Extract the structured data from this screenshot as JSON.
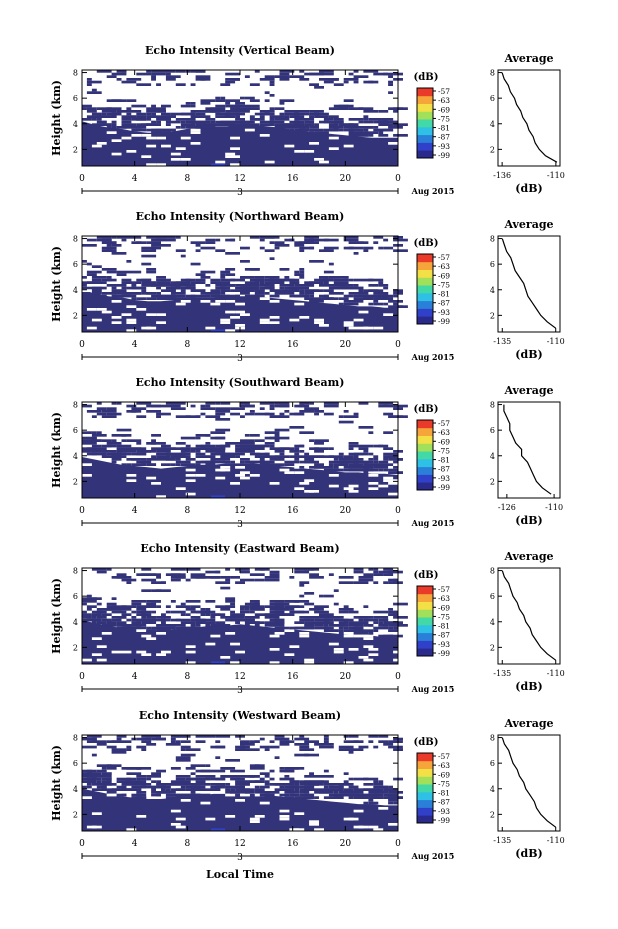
{
  "figure": {
    "xlabel": "Local Time",
    "cbar_title": "(dB)",
    "cbar_ticks": [
      "-57",
      "-63",
      "-69",
      "-75",
      "-81",
      "-87",
      "-93",
      "-99"
    ],
    "cbar_colors": [
      "#2a2a8c",
      "#3040c8",
      "#2a7fd8",
      "#2fc0e6",
      "#43d9a6",
      "#a2e05a",
      "#f2e046",
      "#f5a53a",
      "#ea3a2a"
    ],
    "fill_color": "#33337a",
    "date_label": "Aug 2015",
    "day_label": "3",
    "x_ticks": [
      "0",
      "4",
      "8",
      "12",
      "16",
      "20",
      "0"
    ],
    "ylabel": "Height (km)",
    "y_ticks": [
      "2",
      "4",
      "6",
      "8"
    ],
    "avg_title": "Average",
    "avg_xlabel": "(dB)"
  },
  "chart_data": [
    {
      "type": "heatmap",
      "title": "Echo Intensity (Vertical Beam)",
      "xlabel": "Local Time",
      "ylabel": "Height (km)",
      "xlim": [
        0,
        24
      ],
      "ylim": [
        0.7,
        8.2
      ],
      "colorbar": {
        "label": "(dB)",
        "range": [
          -99,
          -57
        ]
      },
      "echo_top_km": [
        5.3,
        5.0,
        4.8,
        4.7,
        4.5,
        4.4,
        4.4,
        4.5,
        4.7,
        4.8,
        4.9,
        4.9,
        5.0,
        5.0,
        4.9,
        4.8,
        4.6,
        4.5,
        4.4,
        4.3,
        4.2,
        4.1,
        4.0,
        4.0,
        4.0
      ],
      "profile": {
        "title": "Average",
        "xlabel": "(dB)",
        "x_ticks": [
          -136,
          -110
        ],
        "xlim": [
          -138,
          -108
        ],
        "ylim": [
          0.7,
          8.2
        ],
        "height_km": [
          1.0,
          1.5,
          2.0,
          2.5,
          3.0,
          3.5,
          4.0,
          4.5,
          5.0,
          5.5,
          6.0,
          6.5,
          7.0,
          7.5,
          8.0
        ],
        "values_db": [
          -109.5,
          -115,
          -118,
          -120,
          -121,
          -123,
          -124,
          -126,
          -127,
          -129,
          -130,
          -132,
          -133,
          -135,
          -136
        ]
      }
    },
    {
      "type": "heatmap",
      "title": "Echo Intensity (Northward Beam)",
      "xlabel": "Local Time",
      "ylabel": "Height (km)",
      "xlim": [
        0,
        24
      ],
      "ylim": [
        0.7,
        8.2
      ],
      "colorbar": {
        "label": "(dB)",
        "range": [
          -99,
          -57
        ]
      },
      "echo_top_km": [
        5.1,
        4.8,
        4.6,
        4.5,
        4.3,
        4.2,
        4.2,
        4.3,
        4.4,
        4.5,
        4.5,
        4.6,
        4.6,
        4.6,
        4.5,
        4.4,
        4.3,
        4.2,
        4.1,
        4.0,
        3.9,
        3.8,
        3.8,
        3.7,
        3.7
      ],
      "profile": {
        "title": "Average",
        "xlabel": "(dB)",
        "x_ticks": [
          -135,
          -110
        ],
        "xlim": [
          -137,
          -108
        ],
        "ylim": [
          0.7,
          8.2
        ],
        "height_km": [
          1.0,
          1.5,
          2.0,
          2.5,
          3.0,
          3.5,
          4.0,
          4.5,
          5.0,
          5.5,
          6.0,
          6.5,
          7.0,
          7.5,
          8.0
        ],
        "values_db": [
          -110,
          -114,
          -117,
          -119,
          -121,
          -123,
          -124,
          -125,
          -127,
          -129,
          -130,
          -131,
          -133,
          -134,
          -135
        ]
      }
    },
    {
      "type": "heatmap",
      "title": "Echo Intensity (Southward Beam)",
      "xlabel": "Local Time",
      "ylabel": "Height (km)",
      "xlim": [
        0,
        24
      ],
      "ylim": [
        0.7,
        8.2
      ],
      "colorbar": {
        "label": "(dB)",
        "range": [
          -99,
          -57
        ]
      },
      "echo_top_km": [
        5.0,
        4.8,
        4.6,
        4.4,
        4.3,
        4.2,
        4.1,
        4.2,
        4.3,
        4.4,
        4.4,
        4.5,
        4.5,
        4.5,
        4.4,
        4.3,
        4.2,
        4.1,
        4.0,
        3.9,
        3.8,
        3.8,
        3.7,
        3.7,
        3.6
      ],
      "profile": {
        "title": "Average",
        "xlabel": "(dB)",
        "x_ticks": [
          -126,
          -110
        ],
        "xlim": [
          -129,
          -108
        ],
        "ylim": [
          0.7,
          8.2
        ],
        "height_km": [
          1.0,
          1.5,
          2.0,
          2.5,
          3.0,
          3.5,
          4.0,
          4.5,
          5.0,
          5.5,
          6.0,
          6.5,
          7.0,
          7.5,
          8.0
        ],
        "values_db": [
          -111,
          -114,
          -116,
          -117,
          -118,
          -119,
          -121,
          -121,
          -123,
          -124,
          -125,
          -125,
          -126,
          -127,
          -127
        ]
      }
    },
    {
      "type": "heatmap",
      "title": "Echo Intensity (Eastward Beam)",
      "xlabel": "Local Time",
      "ylabel": "Height (km)",
      "xlim": [
        0,
        24
      ],
      "ylim": [
        0.7,
        8.2
      ],
      "colorbar": {
        "label": "(dB)",
        "range": [
          -99,
          -57
        ]
      },
      "echo_top_km": [
        5.2,
        5.0,
        4.8,
        4.6,
        4.5,
        4.4,
        4.4,
        4.5,
        4.6,
        4.7,
        4.8,
        4.8,
        4.9,
        4.8,
        4.7,
        4.6,
        4.5,
        4.4,
        4.3,
        4.2,
        4.1,
        4.0,
        4.0,
        3.9,
        3.9
      ],
      "profile": {
        "title": "Average",
        "xlabel": "(dB)",
        "x_ticks": [
          -135,
          -110
        ],
        "xlim": [
          -137,
          -108
        ],
        "ylim": [
          0.7,
          8.2
        ],
        "height_km": [
          1.0,
          1.5,
          2.0,
          2.5,
          3.0,
          3.5,
          4.0,
          4.5,
          5.0,
          5.5,
          6.0,
          6.5,
          7.0,
          7.5,
          8.0
        ],
        "values_db": [
          -110,
          -114,
          -117,
          -119,
          -121,
          -122,
          -124,
          -125,
          -127,
          -128,
          -130,
          -131,
          -132,
          -134,
          -135
        ]
      }
    },
    {
      "type": "heatmap",
      "title": "Echo Intensity (Westward Beam)",
      "xlabel": "Local Time",
      "ylabel": "Height (km)",
      "xlim": [
        0,
        24
      ],
      "ylim": [
        0.7,
        8.2
      ],
      "colorbar": {
        "label": "(dB)",
        "range": [
          -99,
          -57
        ]
      },
      "echo_top_km": [
        5.1,
        4.9,
        4.7,
        4.5,
        4.4,
        4.3,
        4.3,
        4.4,
        4.5,
        4.6,
        4.7,
        4.7,
        4.7,
        4.7,
        4.6,
        4.5,
        4.4,
        4.3,
        4.2,
        4.1,
        4.0,
        3.9,
        3.9,
        3.8,
        3.8
      ],
      "profile": {
        "title": "Average",
        "xlabel": "(dB)",
        "x_ticks": [
          -135,
          -110
        ],
        "xlim": [
          -137,
          -108
        ],
        "ylim": [
          0.7,
          8.2
        ],
        "height_km": [
          1.0,
          1.5,
          2.0,
          2.5,
          3.0,
          3.5,
          4.0,
          4.5,
          5.0,
          5.5,
          6.0,
          6.5,
          7.0,
          7.5,
          8.0
        ],
        "values_db": [
          -110,
          -114,
          -117,
          -119,
          -120,
          -122,
          -124,
          -125,
          -127,
          -128,
          -130,
          -131,
          -132,
          -134,
          -135
        ]
      }
    }
  ]
}
